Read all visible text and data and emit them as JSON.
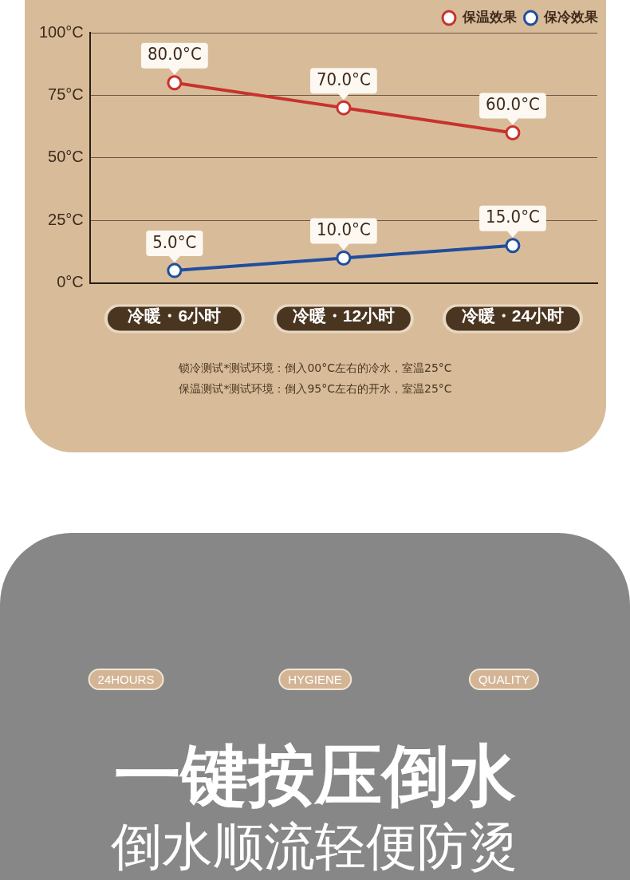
{
  "chart_data": {
    "type": "line",
    "categories": [
      "冷暖・6小时",
      "冷暖・12小时",
      "冷暖・24小时"
    ],
    "series": [
      {
        "name": "保温效果",
        "color": "#c8322d",
        "values": [
          80,
          70,
          60
        ],
        "value_labels": [
          "80.0°C",
          "70.0°C",
          "60.0°C"
        ]
      },
      {
        "name": "保冷效果",
        "color": "#1f4e9c",
        "values": [
          5,
          10,
          15
        ],
        "value_labels": [
          "5.0°C",
          "10.0°C",
          "15.0°C"
        ]
      }
    ],
    "ylim": [
      0,
      100
    ],
    "yticks": [
      {
        "value": 0,
        "label": "0°C"
      },
      {
        "value": 25,
        "label": "25°C"
      },
      {
        "value": 50,
        "label": "50°C"
      },
      {
        "value": 75,
        "label": "75°C"
      },
      {
        "value": 100,
        "label": "100°C"
      }
    ],
    "grid": "y",
    "legend": "top right",
    "marker": "circle",
    "line_style": "solid",
    "annotations": [
      "锁冷测试*测试环境：倒入00°C左右的冷水，室温25°C",
      "保温测试*测试环境：倒入95°C左右的开水，室温25°C",
      "24HOURS",
      "HYGIENE",
      "QUALITY",
      "一键按压倒水",
      "倒水顺流轻便防烫"
    ]
  }
}
